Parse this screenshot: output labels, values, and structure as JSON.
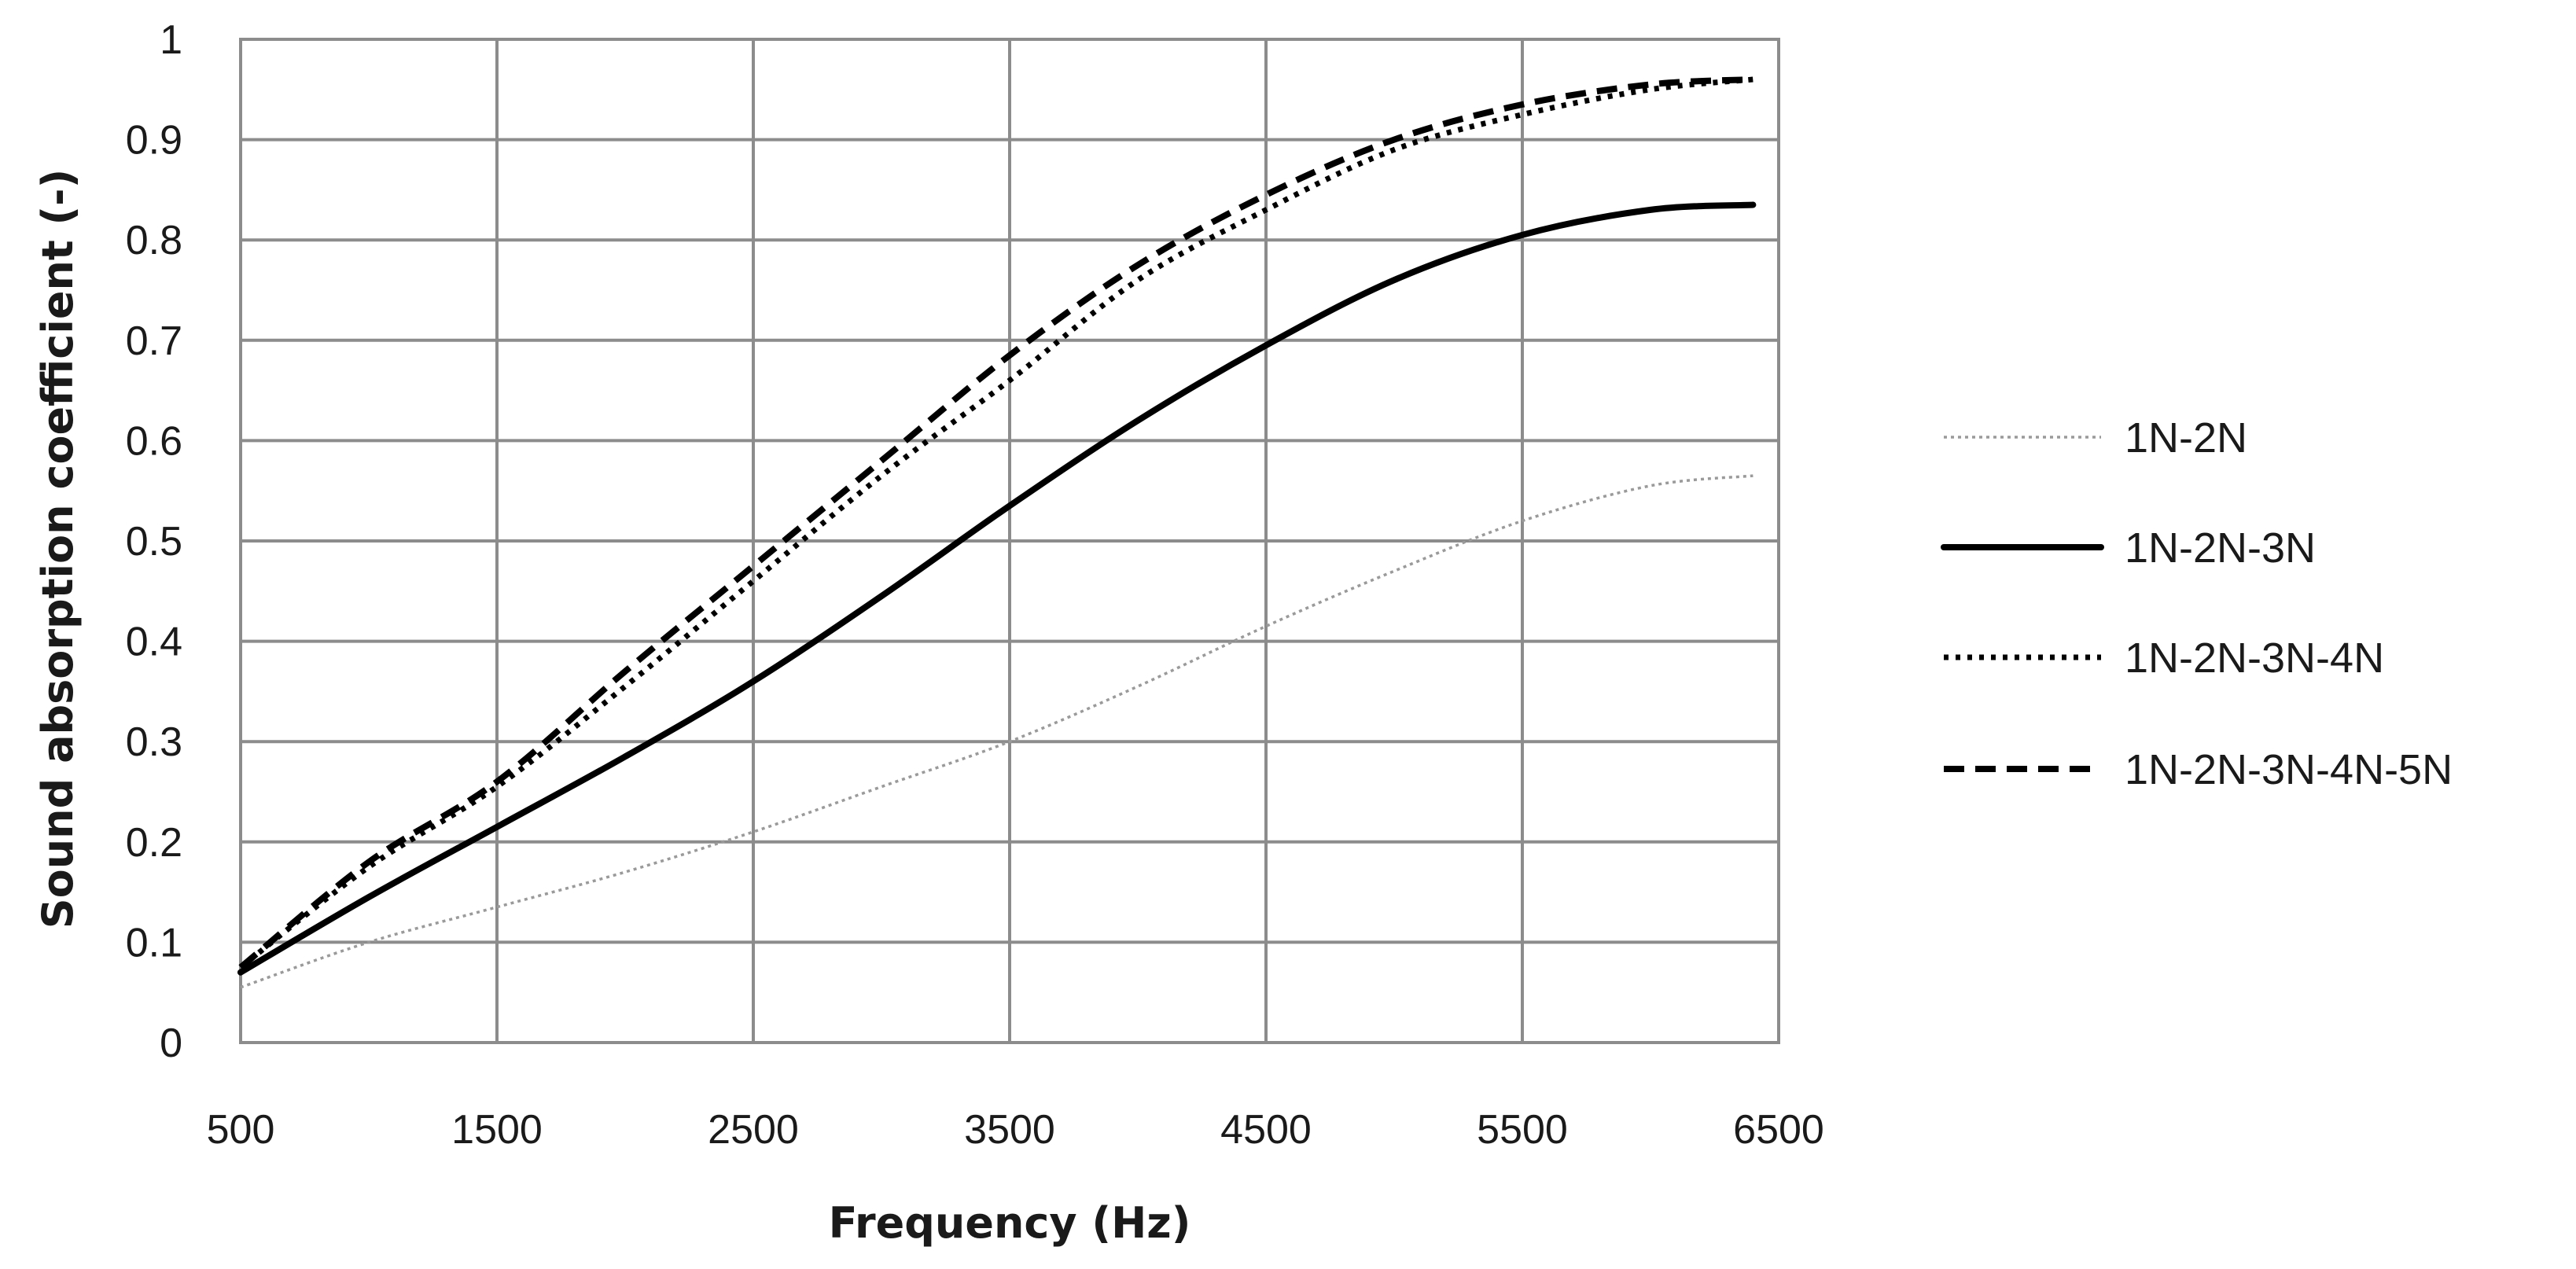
{
  "chart_data": {
    "type": "line",
    "xlabel": "Frequency (Hz)",
    "ylabel": "Sound absorption coefficient  (-)",
    "xlim": [
      500,
      6500
    ],
    "ylim": [
      0,
      1
    ],
    "x_ticks": [
      "500",
      "1500",
      "2500",
      "3500",
      "4500",
      "5500",
      "6500"
    ],
    "y_ticks": [
      "0",
      "0.1",
      "0.2",
      "0.3",
      "0.4",
      "0.5",
      "0.6",
      "0.7",
      "0.8",
      "0.9",
      "1"
    ],
    "grid": true,
    "legend_position": "right",
    "x": [
      500,
      1000,
      1500,
      2000,
      2500,
      3000,
      3500,
      4000,
      4500,
      5000,
      5500,
      6000,
      6400
    ],
    "series": [
      {
        "name": "1N-2N",
        "style": "dotted-thin",
        "color": "#9a9a9a",
        "values": [
          0.055,
          0.1,
          0.135,
          0.17,
          0.21,
          0.255,
          0.3,
          0.355,
          0.415,
          0.47,
          0.52,
          0.555,
          0.565
        ]
      },
      {
        "name": "1N-2N-3N",
        "style": "solid",
        "color": "#000000",
        "values": [
          0.07,
          0.145,
          0.215,
          0.285,
          0.36,
          0.445,
          0.535,
          0.62,
          0.695,
          0.76,
          0.805,
          0.83,
          0.835
        ]
      },
      {
        "name": "1N-2N-3N-4N",
        "style": "dotted",
        "color": "#000000",
        "values": [
          0.075,
          0.175,
          0.255,
          0.355,
          0.46,
          0.565,
          0.66,
          0.76,
          0.83,
          0.89,
          0.925,
          0.95,
          0.96
        ]
      },
      {
        "name": "1N-2N-3N-4N-5N",
        "style": "dashed",
        "color": "#000000",
        "values": [
          0.075,
          0.18,
          0.26,
          0.37,
          0.475,
          0.58,
          0.685,
          0.775,
          0.845,
          0.9,
          0.935,
          0.955,
          0.96
        ]
      }
    ]
  }
}
